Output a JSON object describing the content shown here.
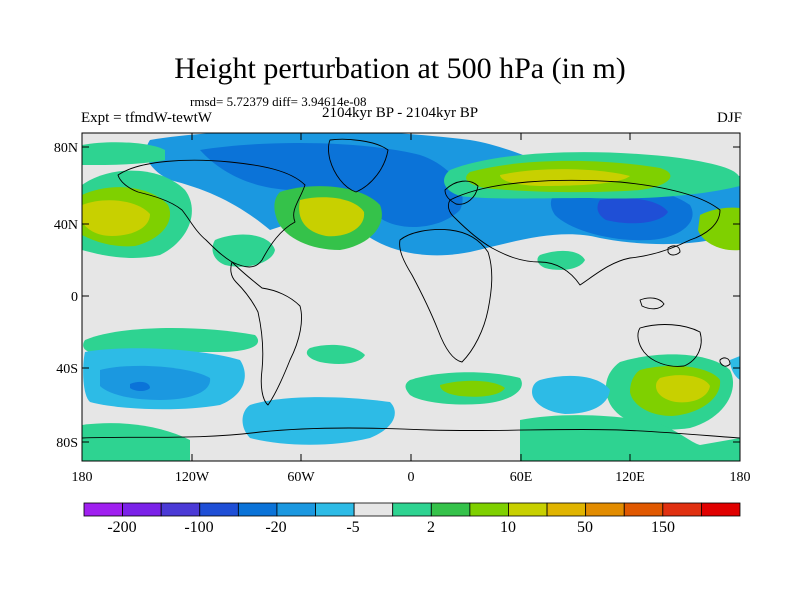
{
  "title": "Height perturbation at 500 hPa (in m)",
  "stats": "rmsd= 5.72379 diff= 3.94614e-08",
  "experiment": "Expt = tfmdW-tewtW",
  "period": "2104kyr BP - 2104kyr BP",
  "season": "DJF",
  "lat_ticks": [
    "80N",
    "40N",
    "0",
    "40S",
    "80S"
  ],
  "lon_ticks": [
    "180",
    "120W",
    "60W",
    "0",
    "60E",
    "120E",
    "180"
  ],
  "colorbar": {
    "labels": [
      "-200",
      "-100",
      "-20",
      "-5",
      "2",
      "10",
      "50",
      "150"
    ],
    "colors": [
      "#a020f0",
      "#7b22e8",
      "#4b3ad6",
      "#1f4fd6",
      "#0b73d8",
      "#1b98e0",
      "#2dbbe6",
      "#e6e6e6",
      "#2ed391",
      "#35c24a",
      "#7fd000",
      "#c8d000",
      "#e0b400",
      "#e28c00",
      "#e05800",
      "#e03010",
      "#e00000"
    ]
  },
  "colors": {
    "background_field": "#e6e6e6",
    "frame": "#000000"
  }
}
